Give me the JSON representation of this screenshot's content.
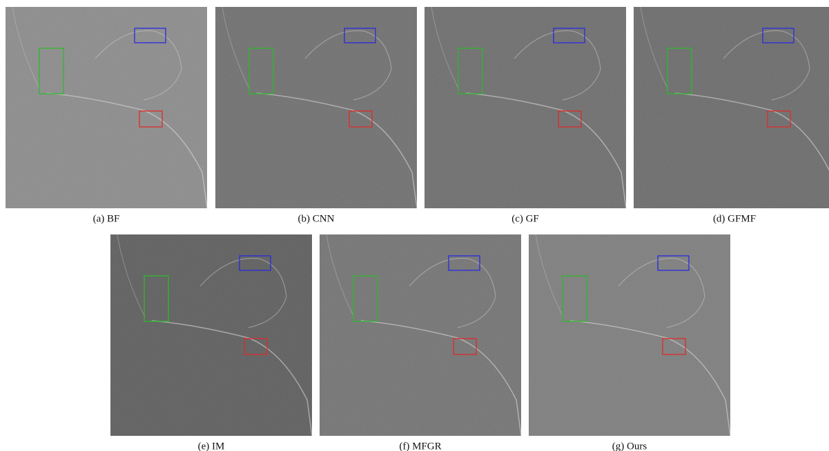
{
  "figure": {
    "panels": [
      {
        "caption": "(a) BF"
      },
      {
        "caption": "(b) CNN"
      },
      {
        "caption": "(c) GF"
      },
      {
        "caption": "(d) GFMF"
      },
      {
        "caption": "(e) IM"
      },
      {
        "caption": "(f) MFGR"
      },
      {
        "caption": "(g) Ours"
      }
    ]
  }
}
